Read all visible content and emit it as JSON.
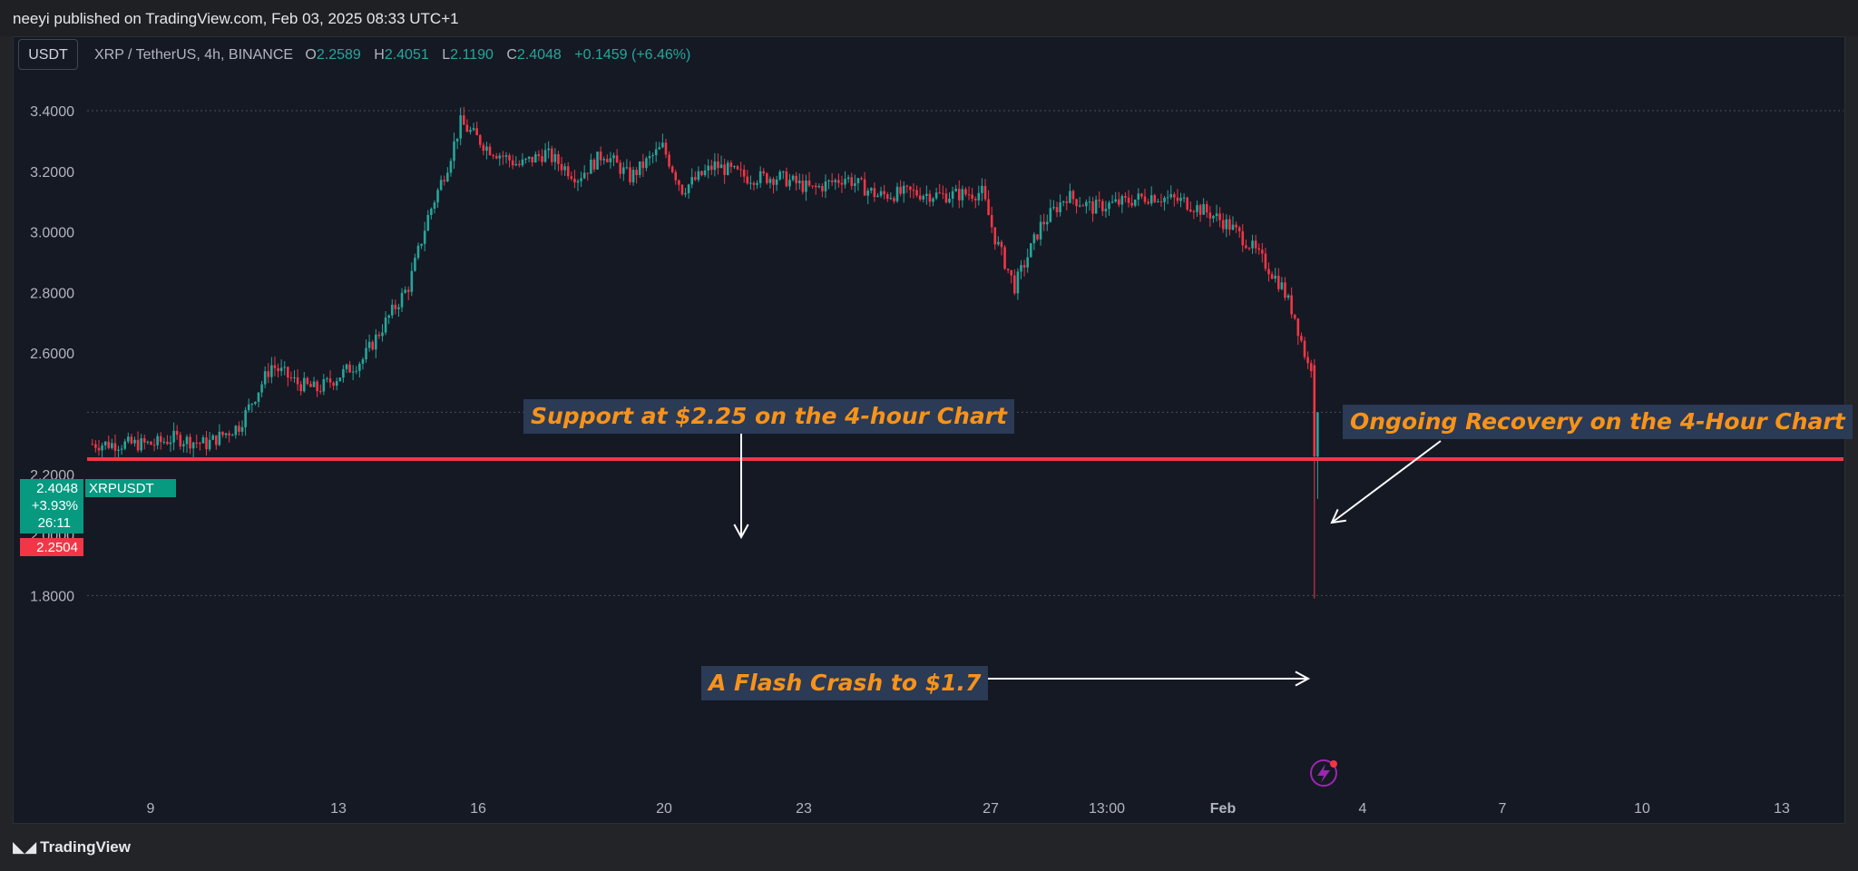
{
  "published": "neeyi published on TradingView.com, Feb 03, 2025 08:33 UTC+1",
  "symbol_button": "USDT",
  "legend": {
    "title": "XRP / TetherUS, 4h, BINANCE",
    "open_label": "O",
    "open": "2.2589",
    "high_label": "H",
    "high": "2.4051",
    "low_label": "L",
    "low": "2.1190",
    "close_label": "C",
    "close": "2.4048",
    "change": "+0.1459 (+6.46%)"
  },
  "price_badge": {
    "price": "2.4048",
    "ticker": "XRPUSDT",
    "change_pct": "+3.93%",
    "countdown": "26:11"
  },
  "support_badge": "2.2504",
  "annotations": {
    "support": "Support at $2.25 on the 4-hour Chart",
    "recovery": "Ongoing Recovery on the 4-Hour Chart",
    "crash": "A Flash Crash to $1.7"
  },
  "footer": "TradingView",
  "colors": {
    "up": "#26a69a",
    "down": "#f23645",
    "annotation_text": "#f7931a",
    "annotation_bg": "#2b3a55",
    "support_line": "#f23645"
  },
  "chart_data": {
    "type": "candlestick",
    "ylim": [
      1.7,
      3.5
    ],
    "y_ticks": [
      "3.4000",
      "3.2000",
      "3.0000",
      "2.8000",
      "2.6000",
      "2.2000",
      "2.0000",
      "1.8000"
    ],
    "x_ticks": [
      "9",
      "13",
      "16",
      "20",
      "23",
      "27",
      "13:00",
      "Feb",
      "4",
      "7",
      "10",
      "13"
    ],
    "support_level": 2.2504,
    "last_price": 2.4048,
    "notable_points": [
      {
        "label": "peak",
        "value": 3.4
      },
      {
        "label": "flash crash low",
        "value": 1.79
      }
    ]
  }
}
